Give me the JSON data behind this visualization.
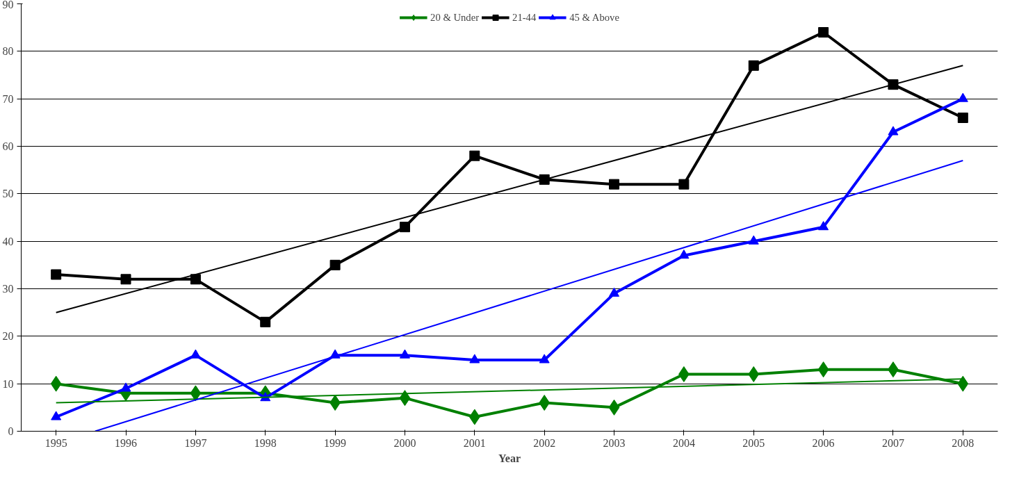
{
  "chart_data": {
    "type": "line",
    "xlabel": "Year",
    "x": [
      1995,
      1996,
      1997,
      1998,
      1999,
      2000,
      2001,
      2002,
      2003,
      2004,
      2005,
      2006,
      2007,
      2008
    ],
    "xlim": [
      1994.5,
      2008.5
    ],
    "xticks": [
      1995,
      1996,
      1997,
      1998,
      1999,
      2000,
      2001,
      2002,
      2003,
      2004,
      2005,
      2006,
      2007,
      2008
    ],
    "ylim": [
      0,
      90
    ],
    "yticks": [
      0,
      10,
      20,
      30,
      40,
      50,
      60,
      70,
      80,
      90
    ],
    "grid": "y",
    "legend": "top",
    "series": [
      {
        "name": "20 & Under",
        "color": "#008000",
        "marker": "diamond",
        "values": [
          10,
          8,
          8,
          8,
          6,
          7,
          3,
          6,
          5,
          12,
          12,
          13,
          13,
          10
        ]
      },
      {
        "name": "21-44",
        "color": "#000000",
        "marker": "square",
        "values": [
          33,
          32,
          32,
          23,
          35,
          43,
          58,
          53,
          52,
          52,
          77,
          84,
          73,
          66
        ]
      },
      {
        "name": "45 & Above",
        "color": "#0000ff",
        "marker": "triangle",
        "values": [
          3,
          9,
          16,
          7,
          16,
          16,
          15,
          15,
          29,
          37,
          40,
          43,
          63,
          70
        ]
      },
      {
        "type": "line",
        "color": "#008000",
        "marker": "none",
        "x": [
          1995,
          2008
        ],
        "values": [
          6,
          11
        ]
      },
      {
        "type": "line",
        "color": "#000000",
        "marker": "none",
        "x": [
          1995,
          2008
        ],
        "values": [
          25,
          77
        ]
      },
      {
        "type": "line",
        "color": "#0000ff",
        "marker": "none",
        "x": [
          1995.56,
          2008
        ],
        "values": [
          0,
          57
        ]
      }
    ]
  }
}
